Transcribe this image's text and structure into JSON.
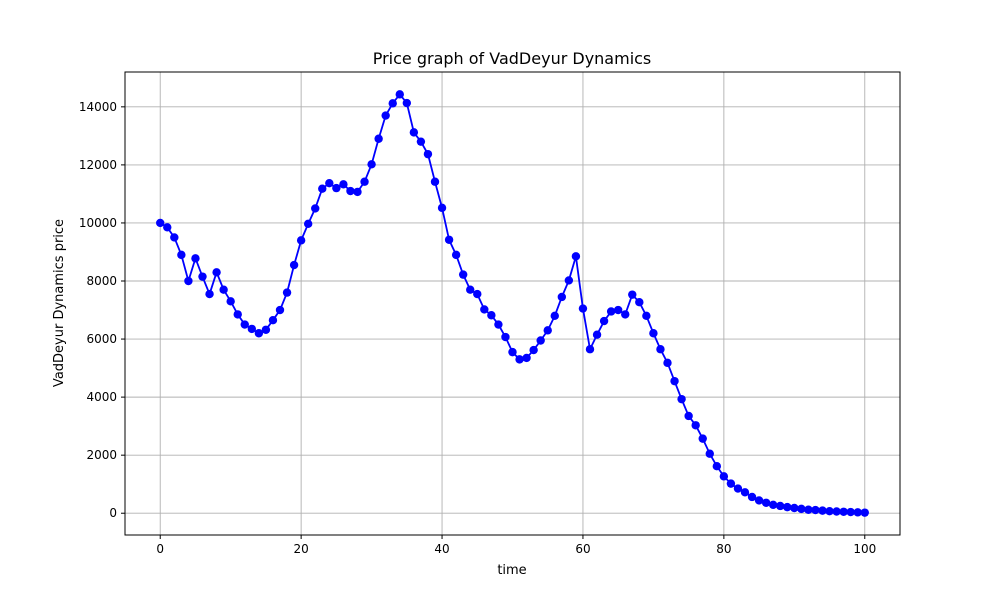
{
  "chart_data": {
    "type": "line",
    "title": "Price graph of VadDeyur Dynamics",
    "xlabel": "time",
    "ylabel": "VadDeyur Dynamics price",
    "xlim": [
      -5,
      105
    ],
    "ylim": [
      -750,
      15200
    ],
    "xticks": [
      0,
      20,
      40,
      60,
      80,
      100
    ],
    "yticks": [
      0,
      2000,
      4000,
      6000,
      8000,
      10000,
      12000,
      14000
    ],
    "grid": true,
    "color": "#0000ff",
    "marker": "circle",
    "series": [
      {
        "x": [
          0,
          1,
          2,
          3,
          4,
          5,
          6,
          7,
          8,
          9,
          10,
          11,
          12,
          13,
          14,
          15,
          16,
          17,
          18,
          19,
          20,
          21,
          22,
          23,
          24,
          25,
          26,
          27,
          28,
          29,
          30,
          31,
          32,
          33,
          34,
          35,
          36,
          37,
          38,
          39,
          40,
          41,
          42,
          43,
          44,
          45,
          46,
          47,
          48,
          49,
          50,
          51,
          52,
          53,
          54,
          55,
          56,
          57,
          58,
          59,
          60,
          61,
          62,
          63,
          64,
          65,
          66,
          67,
          68,
          69,
          70,
          71,
          72,
          73,
          74,
          75,
          76,
          77,
          78,
          79,
          80,
          81,
          82,
          83,
          84,
          85,
          86,
          87,
          88,
          89,
          90,
          91,
          92,
          93,
          94,
          95,
          96,
          97,
          98,
          99,
          100
        ],
        "y": [
          10000,
          9850,
          9500,
          8900,
          8000,
          8780,
          8150,
          7550,
          8300,
          7700,
          7300,
          6850,
          6500,
          6350,
          6200,
          6320,
          6650,
          7000,
          7600,
          8550,
          9400,
          9970,
          10500,
          11180,
          11370,
          11200,
          11330,
          11100,
          11070,
          11420,
          12020,
          12900,
          13700,
          14120,
          14430,
          14130,
          13120,
          12800,
          12370,
          11420,
          10520,
          9420,
          8900,
          8220,
          7700,
          7550,
          7020,
          6820,
          6500,
          6070,
          5550,
          5300,
          5350,
          5620,
          5950,
          6300,
          6800,
          7450,
          8020,
          8850,
          7050,
          5650,
          6150,
          6620,
          6950,
          7000,
          6850,
          7530,
          7270,
          6800,
          6200,
          5650,
          5180,
          4550,
          3930,
          3350,
          3030,
          2570,
          2050,
          1620,
          1270,
          1020,
          850,
          720,
          560,
          440,
          360,
          290,
          250,
          210,
          180,
          150,
          120,
          110,
          90,
          70,
          60,
          50,
          40,
          30,
          20
        ]
      }
    ]
  }
}
